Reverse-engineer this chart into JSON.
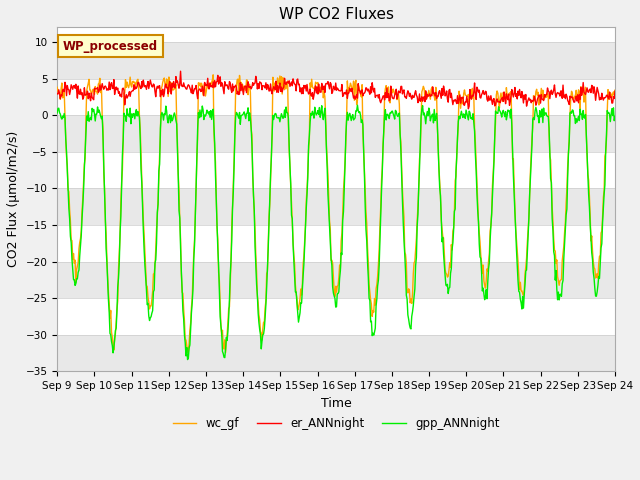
{
  "title": "WP CO2 Fluxes",
  "ylabel": "CO2 Flux (μmol/m2/s)",
  "xlabel": "Time",
  "ylim": [
    -35,
    12
  ],
  "yticks": [
    -35,
    -30,
    -25,
    -20,
    -15,
    -10,
    -5,
    0,
    5,
    10
  ],
  "xlim": [
    0,
    360
  ],
  "xtick_positions": [
    0,
    24,
    48,
    72,
    96,
    120,
    144,
    168,
    192,
    216,
    240,
    264,
    288,
    312,
    336,
    360
  ],
  "xtick_labels": [
    "Sep 9",
    "Sep 10",
    "Sep 11",
    "Sep 12",
    "Sep 13",
    "Sep 14",
    "Sep 15",
    "Sep 16",
    "Sep 17",
    "Sep 18",
    "Sep 19",
    "Sep 20",
    "Sep 21",
    "Sep 22",
    "Sep 23",
    "Sep 24"
  ],
  "gpp_color": "#00ee00",
  "er_color": "#ff0000",
  "wc_color": "#ffa500",
  "gpp_linewidth": 1.0,
  "er_linewidth": 1.0,
  "wc_linewidth": 1.0,
  "legend_label": "WP_processed",
  "legend_text_color": "#8b0000",
  "legend_bg_color": "#ffffcc",
  "legend_edge_color": "#cc8800",
  "series_labels": [
    "gpp_ANNnight",
    "er_ANNnight",
    "wc_gf"
  ],
  "title_fontsize": 11,
  "axis_label_fontsize": 9,
  "tick_fontsize": 7.5,
  "fig_bg": "#f0f0f0",
  "plot_bg": "#ffffff",
  "band_dark": "#e8e8e8",
  "band_light": "#ffffff"
}
